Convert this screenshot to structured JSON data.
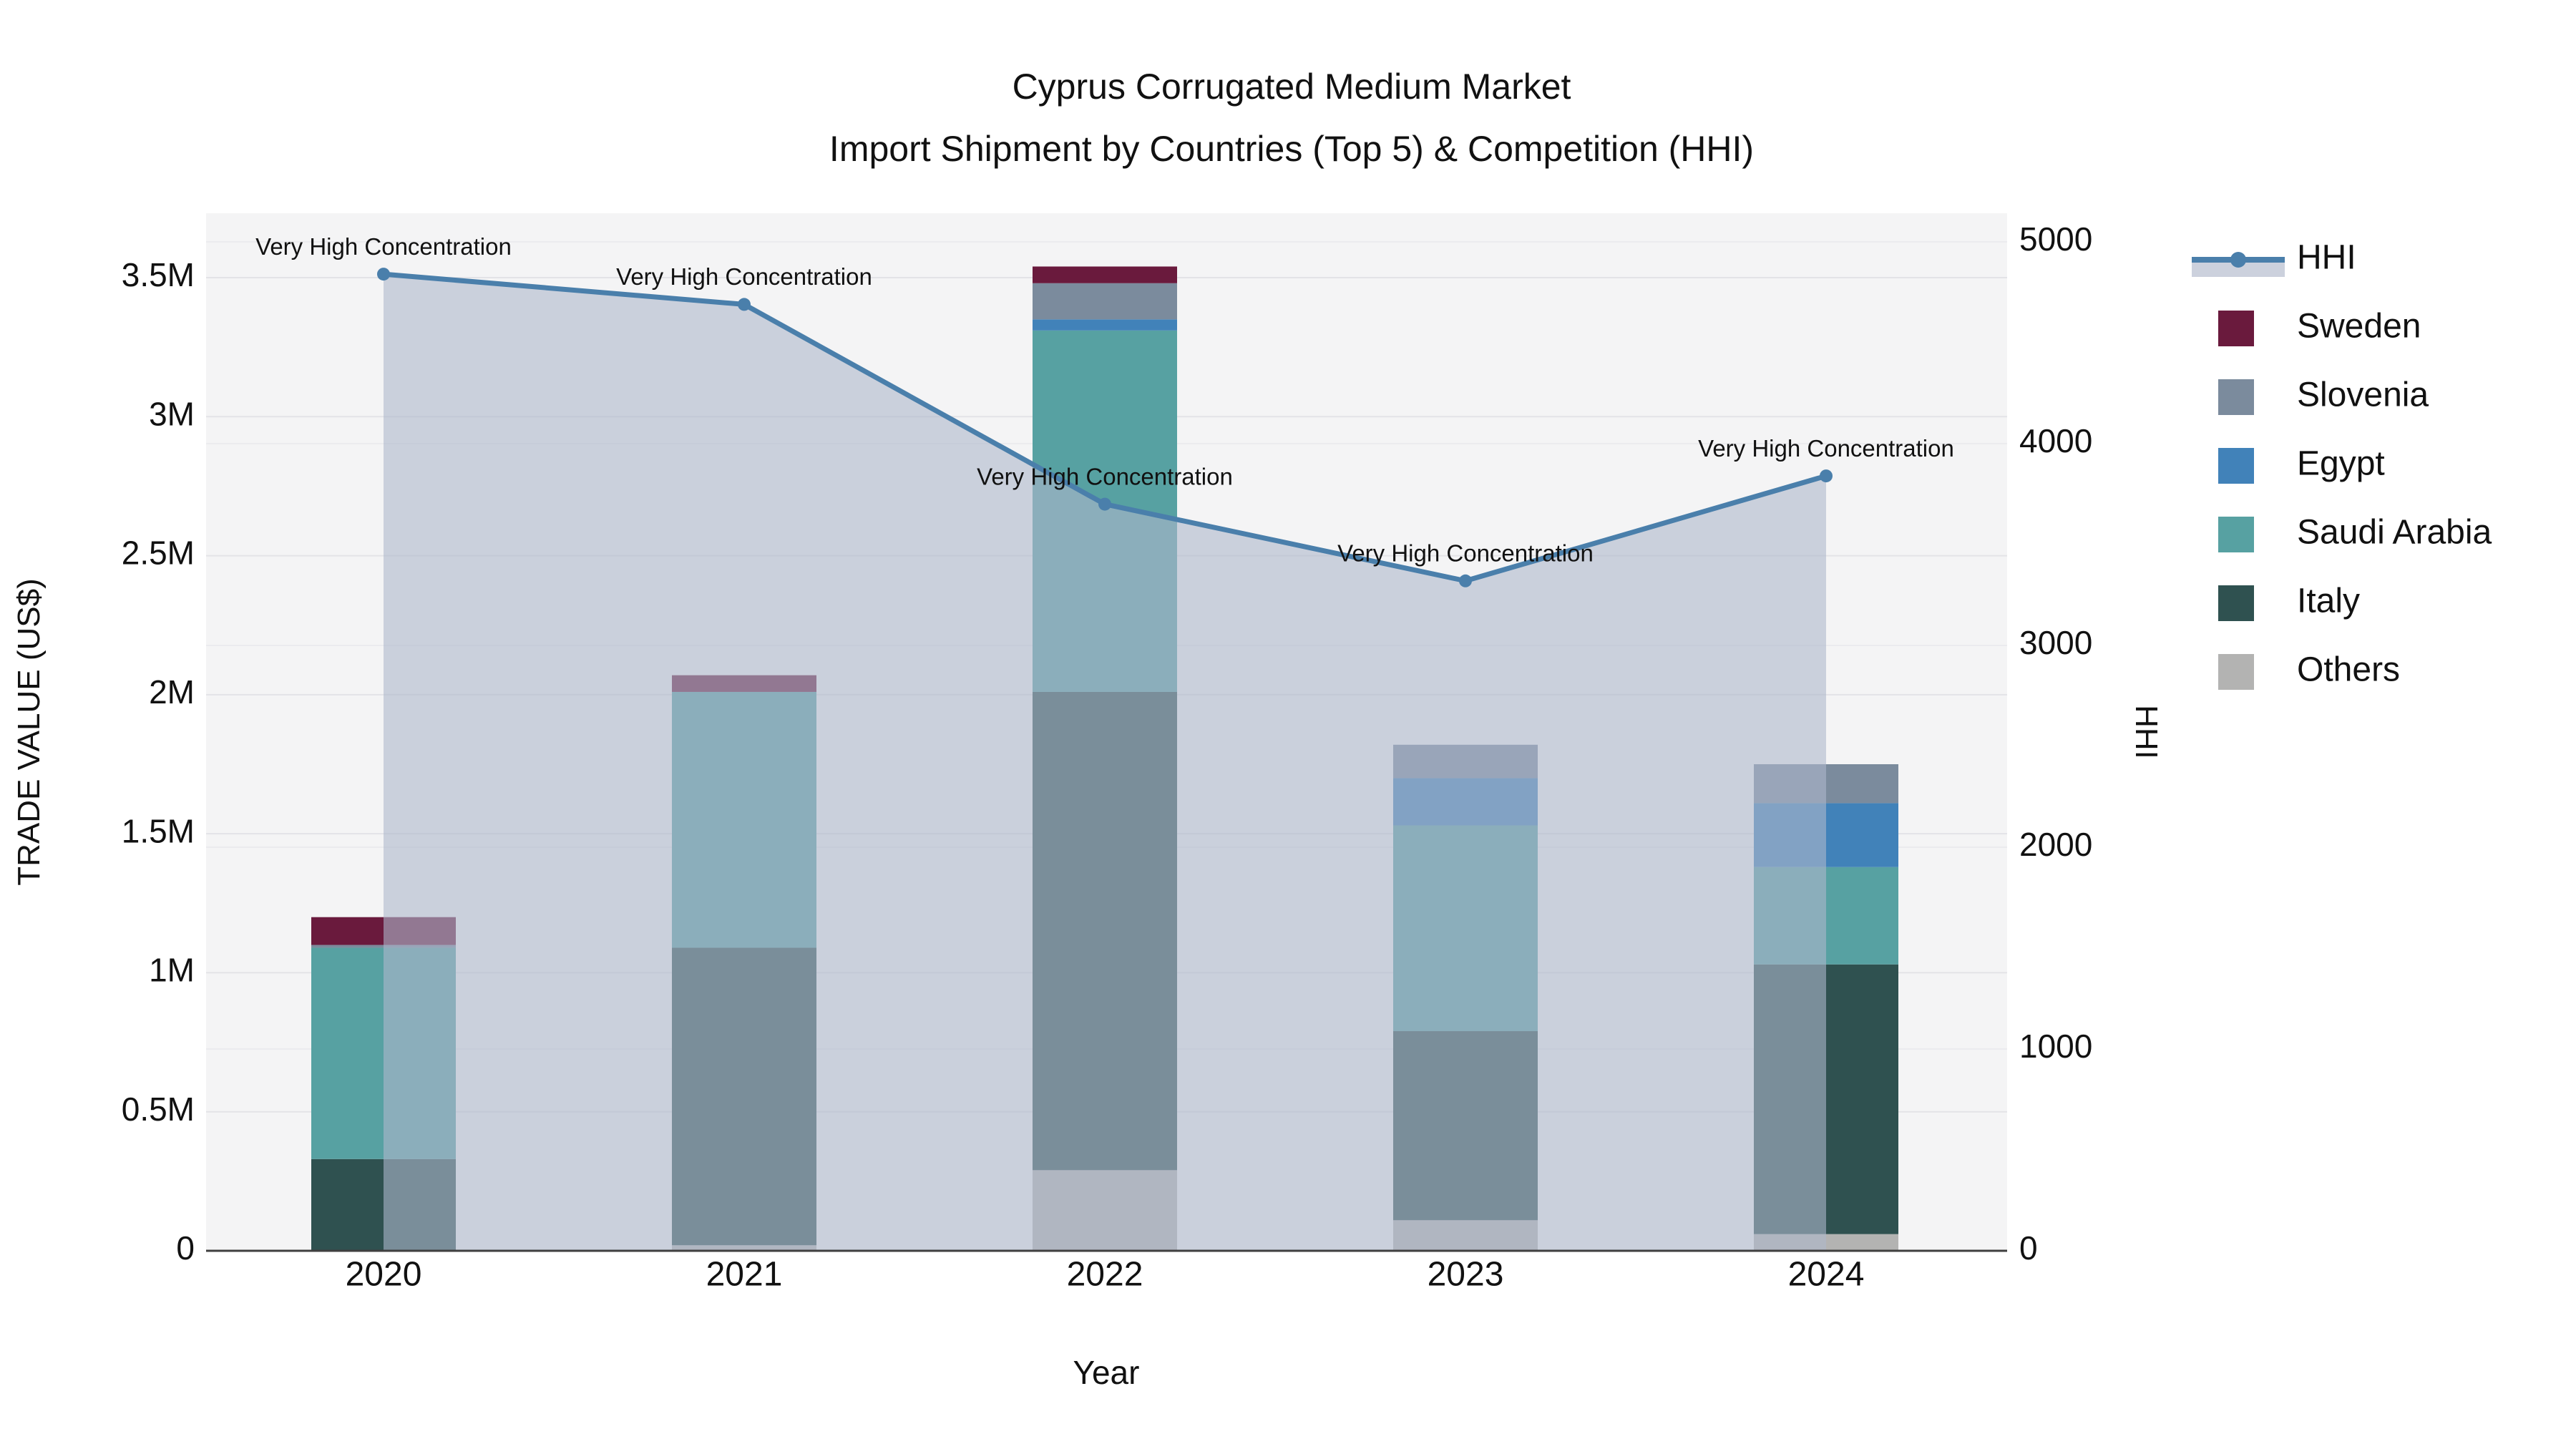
{
  "title": {
    "line1": "Cyprus Corrugated Medium Market",
    "line2": "Import Shipment by Countries (Top 5) & Competition (HHI)"
  },
  "axes": {
    "left": {
      "title": "TRADE VALUE (US$)",
      "tick_labels": [
        "0",
        "0.5M",
        "1M",
        "1.5M",
        "2M",
        "2.5M",
        "3M",
        "3.5M"
      ],
      "tick_values": [
        0,
        500000,
        1000000,
        1500000,
        2000000,
        2500000,
        3000000,
        3500000
      ]
    },
    "right": {
      "title": "HHI",
      "tick_labels": [
        "0",
        "1000",
        "2000",
        "3000",
        "4000",
        "5000"
      ],
      "tick_values": [
        0,
        1000,
        2000,
        3000,
        4000,
        5000
      ]
    },
    "x": {
      "title": "Year",
      "tick_labels": [
        "2020",
        "2021",
        "2022",
        "2023",
        "2024"
      ]
    }
  },
  "legend": {
    "items": [
      {
        "label": "HHI",
        "type": "line",
        "key": "HHI"
      },
      {
        "label": "Sweden",
        "type": "swatch",
        "key": "Sweden"
      },
      {
        "label": "Slovenia",
        "type": "swatch",
        "key": "Slovenia"
      },
      {
        "label": "Egypt",
        "type": "swatch",
        "key": "Egypt"
      },
      {
        "label": "Saudi Arabia",
        "type": "swatch",
        "key": "Saudi Arabia"
      },
      {
        "label": "Italy",
        "type": "swatch",
        "key": "Italy"
      },
      {
        "label": "Others",
        "type": "swatch",
        "key": "Others"
      }
    ]
  },
  "colors": {
    "Sweden": "#6a1a3d",
    "Slovenia": "#7b8b9d",
    "Egypt": "#4182b9",
    "Saudi Arabia": "#57a1a2",
    "Italy": "#2f5150",
    "Others": "#b3b3b2",
    "hhi_line": "#4a7fab",
    "hhi_fill": "rgba(174,184,203,0.6)",
    "hhi_fill_legend": "#ccd1dd",
    "plot_bg": "#f4f4f5",
    "grid_left": "#e3e3e7",
    "grid_right": "#ebebee",
    "axis_line": "#3f3f3f",
    "text": "#111111"
  },
  "chart_data": {
    "type": "bar",
    "stacked": true,
    "categories": [
      "2020",
      "2021",
      "2022",
      "2023",
      "2024"
    ],
    "stack_order_bottom_to_top": [
      "Others",
      "Italy",
      "Saudi Arabia",
      "Egypt",
      "Slovenia",
      "Sweden"
    ],
    "series": [
      {
        "name": "Others",
        "values": [
          0,
          20000,
          290000,
          110000,
          60000
        ]
      },
      {
        "name": "Italy",
        "values": [
          330000,
          1070000,
          1720000,
          680000,
          970000
        ]
      },
      {
        "name": "Saudi Arabia",
        "values": [
          760000,
          920000,
          1300000,
          740000,
          350000
        ]
      },
      {
        "name": "Egypt",
        "values": [
          0,
          0,
          40000,
          170000,
          230000
        ]
      },
      {
        "name": "Slovenia",
        "values": [
          10000,
          0,
          130000,
          120000,
          140000
        ]
      },
      {
        "name": "Sweden",
        "values": [
          100000,
          60000,
          60000,
          0,
          0
        ]
      }
    ],
    "bar_totals": [
      1200000,
      2070000,
      3540000,
      1820000,
      1750000
    ],
    "line_series": {
      "name": "HHI",
      "axis": "right",
      "values": [
        4840,
        4690,
        3700,
        3320,
        3840
      ],
      "fill": "tozeroy",
      "annotations": [
        "Very High Concentration",
        "Very High Concentration",
        "Very High Concentration",
        "Very High Concentration",
        "Very High Concentration"
      ]
    },
    "xlabel": "Year",
    "ylabel_left": "TRADE VALUE (US$)",
    "ylabel_right": "HHI",
    "ylim_left": [
      0,
      3500000
    ],
    "ylim_right": [
      0,
      5000
    ],
    "grid": true,
    "legend_position": "right"
  }
}
